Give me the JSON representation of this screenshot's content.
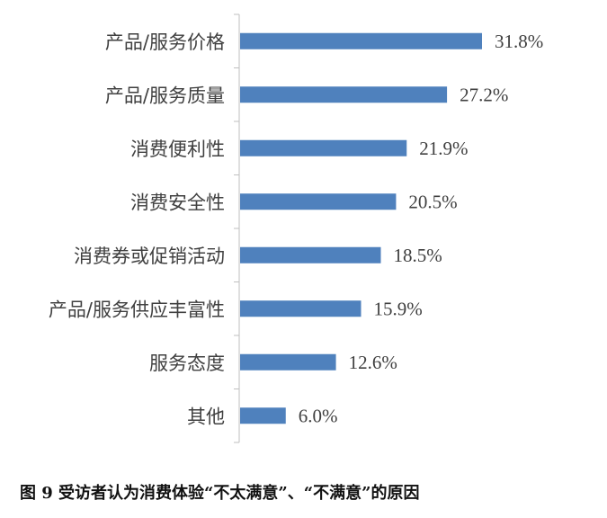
{
  "chart_data": {
    "type": "bar",
    "orientation": "horizontal",
    "categories": [
      "产品/服务价格",
      "产品/服务质量",
      "消费便利性",
      "消费安全性",
      "消费券或促销活动",
      "产品/服务供应丰富性",
      "服务态度",
      "其他"
    ],
    "values": [
      31.8,
      27.2,
      21.9,
      20.5,
      18.5,
      15.9,
      12.6,
      6.0
    ],
    "value_labels": [
      "31.8%",
      "27.2%",
      "21.9%",
      "20.5%",
      "18.5%",
      "15.9%",
      "12.6%",
      "6.0%"
    ],
    "bar_color": "#4f81bd",
    "grid": false,
    "legend": "none",
    "xlim": [
      0,
      40
    ]
  },
  "caption": "图 9  受访者认为消费体验“不太满意”、“不满意”的原因"
}
